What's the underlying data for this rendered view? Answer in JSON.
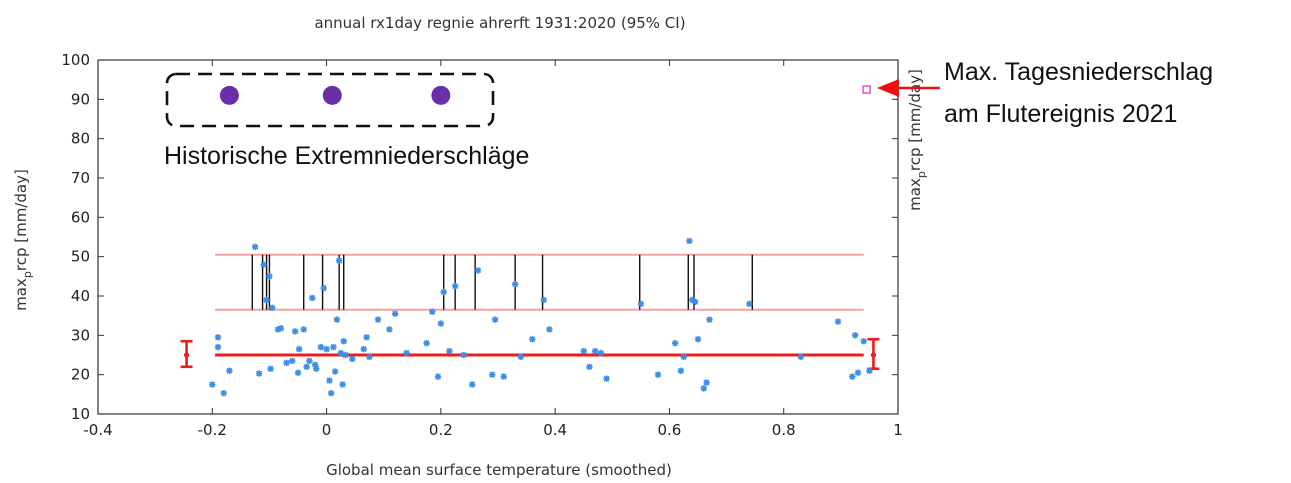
{
  "chart_data": {
    "type": "scatter",
    "title": "annual  rx1day regnie ahrerft 1931:2020 (95% CI)",
    "xlabel": "Global mean surface temperature (smoothed)",
    "ylabel_main": "max",
    "ylabel_sub": "p",
    "ylabel_rest": "rcp [mm/day]",
    "xlim": [
      -0.4,
      1
    ],
    "ylim": [
      10,
      100
    ],
    "xticks": [
      "-0.4",
      "-0.2",
      "0",
      "0.2",
      "0.4",
      "0.6",
      "0.8",
      "1"
    ],
    "xtick_values": [
      -0.4,
      -0.2,
      0,
      0.2,
      0.4,
      0.6,
      0.8,
      1
    ],
    "yticks": [
      "10",
      "20",
      "30",
      "40",
      "50",
      "60",
      "70",
      "80",
      "90",
      "100"
    ],
    "ytick_values": [
      10,
      20,
      30,
      40,
      50,
      60,
      70,
      80,
      90,
      100
    ],
    "colors": {
      "points": "#3d8ee8",
      "fit": "#ee1c1c",
      "band": "#f7a0a0",
      "historic": "#6a2fa8",
      "event": "#e040e0",
      "arrow": "#ee1010",
      "stems": "#111111"
    },
    "points": [
      {
        "x": -0.2,
        "y": 17.5
      },
      {
        "x": -0.19,
        "y": 29.5
      },
      {
        "x": -0.19,
        "y": 27.0
      },
      {
        "x": -0.18,
        "y": 15.3
      },
      {
        "x": -0.17,
        "y": 21.0
      },
      {
        "x": -0.125,
        "y": 52.5
      },
      {
        "x": -0.118,
        "y": 20.3
      },
      {
        "x": -0.11,
        "y": 48.0
      },
      {
        "x": -0.105,
        "y": 39.0
      },
      {
        "x": -0.1,
        "y": 45.0
      },
      {
        "x": -0.095,
        "y": 37.0
      },
      {
        "x": -0.098,
        "y": 21.5
      },
      {
        "x": -0.085,
        "y": 31.5
      },
      {
        "x": -0.08,
        "y": 31.8
      },
      {
        "x": -0.07,
        "y": 23.0
      },
      {
        "x": -0.06,
        "y": 23.5
      },
      {
        "x": -0.055,
        "y": 31.0
      },
      {
        "x": -0.05,
        "y": 20.5
      },
      {
        "x": -0.048,
        "y": 26.5
      },
      {
        "x": -0.04,
        "y": 31.5
      },
      {
        "x": -0.035,
        "y": 22.0
      },
      {
        "x": -0.03,
        "y": 23.5
      },
      {
        "x": -0.025,
        "y": 39.5
      },
      {
        "x": -0.02,
        "y": 22.5
      },
      {
        "x": -0.018,
        "y": 21.5
      },
      {
        "x": -0.01,
        "y": 27.0
      },
      {
        "x": -0.005,
        "y": 42.0
      },
      {
        "x": 0.0,
        "y": 26.5
      },
      {
        "x": 0.005,
        "y": 18.5
      },
      {
        "x": 0.008,
        "y": 15.3
      },
      {
        "x": 0.012,
        "y": 27.0
      },
      {
        "x": 0.015,
        "y": 20.8
      },
      {
        "x": 0.018,
        "y": 34.0
      },
      {
        "x": 0.022,
        "y": 49.0
      },
      {
        "x": 0.025,
        "y": 25.5
      },
      {
        "x": 0.028,
        "y": 17.5
      },
      {
        "x": 0.03,
        "y": 28.5
      },
      {
        "x": 0.033,
        "y": 25.0
      },
      {
        "x": 0.045,
        "y": 24.0
      },
      {
        "x": 0.065,
        "y": 26.5
      },
      {
        "x": 0.07,
        "y": 29.5
      },
      {
        "x": 0.075,
        "y": 24.5
      },
      {
        "x": 0.09,
        "y": 34.0
      },
      {
        "x": 0.11,
        "y": 31.5
      },
      {
        "x": 0.12,
        "y": 35.5
      },
      {
        "x": 0.14,
        "y": 25.5
      },
      {
        "x": 0.175,
        "y": 28.0
      },
      {
        "x": 0.185,
        "y": 36.0
      },
      {
        "x": 0.195,
        "y": 19.5
      },
      {
        "x": 0.2,
        "y": 33.0
      },
      {
        "x": 0.205,
        "y": 41.0
      },
      {
        "x": 0.215,
        "y": 26.0
      },
      {
        "x": 0.225,
        "y": 42.5
      },
      {
        "x": 0.24,
        "y": 25.0
      },
      {
        "x": 0.255,
        "y": 17.5
      },
      {
        "x": 0.265,
        "y": 46.5
      },
      {
        "x": 0.29,
        "y": 20.0
      },
      {
        "x": 0.295,
        "y": 34.0
      },
      {
        "x": 0.31,
        "y": 19.5
      },
      {
        "x": 0.33,
        "y": 43.0
      },
      {
        "x": 0.34,
        "y": 24.5
      },
      {
        "x": 0.36,
        "y": 29.0
      },
      {
        "x": 0.38,
        "y": 39.0
      },
      {
        "x": 0.39,
        "y": 31.5
      },
      {
        "x": 0.45,
        "y": 26.0
      },
      {
        "x": 0.46,
        "y": 22.0
      },
      {
        "x": 0.47,
        "y": 26.0
      },
      {
        "x": 0.48,
        "y": 25.5
      },
      {
        "x": 0.49,
        "y": 19.0
      },
      {
        "x": 0.55,
        "y": 38.0
      },
      {
        "x": 0.58,
        "y": 20.0
      },
      {
        "x": 0.61,
        "y": 28.0
      },
      {
        "x": 0.62,
        "y": 21.0
      },
      {
        "x": 0.625,
        "y": 24.5
      },
      {
        "x": 0.635,
        "y": 54.0
      },
      {
        "x": 0.64,
        "y": 39.0
      },
      {
        "x": 0.645,
        "y": 38.5
      },
      {
        "x": 0.65,
        "y": 29.0
      },
      {
        "x": 0.66,
        "y": 16.5
      },
      {
        "x": 0.665,
        "y": 18.0
      },
      {
        "x": 0.67,
        "y": 34.0
      },
      {
        "x": 0.74,
        "y": 38.0
      },
      {
        "x": 0.83,
        "y": 24.5
      },
      {
        "x": 0.895,
        "y": 33.5
      },
      {
        "x": 0.92,
        "y": 19.5
      },
      {
        "x": 0.925,
        "y": 30.0
      },
      {
        "x": 0.93,
        "y": 20.5
      },
      {
        "x": 0.94,
        "y": 28.5
      },
      {
        "x": 0.95,
        "y": 21.0
      }
    ],
    "return_level_band": {
      "lower": 36.5,
      "upper": 50.5,
      "x_from": -0.195,
      "x_to": 0.94
    },
    "stems_x": [
      -0.13,
      -0.112,
      -0.105,
      -0.1,
      -0.04,
      -0.007,
      0.022,
      0.03,
      0.205,
      0.225,
      0.26,
      0.33,
      0.378,
      0.548,
      0.633,
      0.643,
      0.745
    ],
    "fit_line": {
      "y": 25.0,
      "x_from": -0.195,
      "x_to": 0.94
    },
    "error_bars": [
      {
        "x": -0.245,
        "center": 25.0,
        "low": 22.0,
        "high": 28.5
      },
      {
        "x": 0.957,
        "center": 25.0,
        "low": 21.5,
        "high": 29.0
      }
    ],
    "historic_events": [
      {
        "x": -0.17,
        "y": 91
      },
      {
        "x": 0.01,
        "y": 91
      },
      {
        "x": 0.2,
        "y": 91
      }
    ],
    "event_2021": {
      "x": 0.945,
      "y": 92.5
    }
  },
  "annotations": {
    "historic_label": "Historische Extremniederschläge",
    "event_label_line1": "Max. Tagesniederschlag",
    "event_label_line2": "am Flutereignis 2021"
  }
}
